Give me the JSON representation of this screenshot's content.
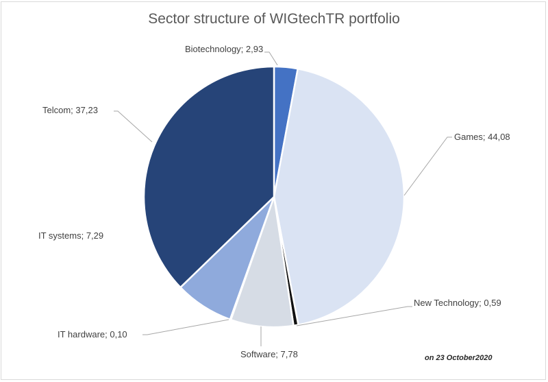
{
  "chart_data": {
    "type": "pie",
    "title": "Sector structure of WIGtechTR portfolio",
    "note": "on 23 October2020",
    "slices": [
      {
        "name": "Biotechnology",
        "value": 2.93,
        "label": "Biotechnology; 2,93",
        "color": "#4472C4"
      },
      {
        "name": "Games",
        "value": 44.08,
        "label": "Games; 44,08",
        "color": "#DAE3F3"
      },
      {
        "name": "New Technology",
        "value": 0.59,
        "label": "New Technology; 0,59",
        "color": "#111111"
      },
      {
        "name": "Software",
        "value": 7.78,
        "label": "Software; 7,78",
        "color": "#D6DCE5"
      },
      {
        "name": "IT hardware",
        "value": 0.1,
        "label": "IT hardware; 0,10",
        "color": "#ADB9CA"
      },
      {
        "name": "IT systems",
        "value": 7.29,
        "label": "IT systems; 7,29",
        "color": "#8FAADC"
      },
      {
        "name": "Telcom",
        "value": 37.23,
        "label": "Telcom; 37,23",
        "color": "#264478"
      }
    ]
  }
}
